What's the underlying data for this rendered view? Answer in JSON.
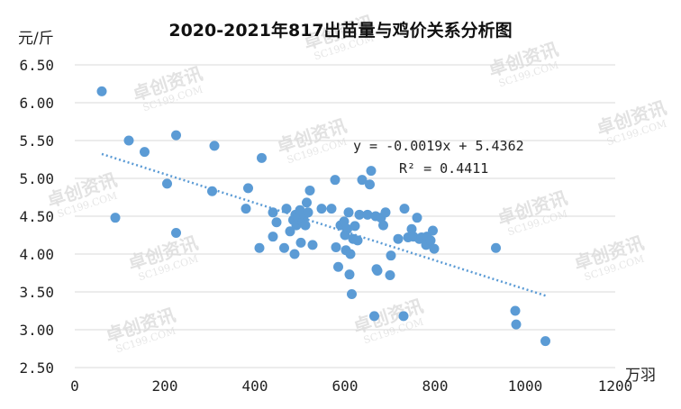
{
  "chart_data": {
    "type": "scatter",
    "title": "2020-2021年817出苗量与鸡价关系分析图",
    "xlabel": "万羽",
    "ylabel": "元/斤",
    "xlim": [
      0,
      1200
    ],
    "ylim": [
      2.5,
      6.5
    ],
    "xticks": [
      "0",
      "200",
      "400",
      "600",
      "800",
      "1000",
      "1200"
    ],
    "yticks": [
      "2.50",
      "3.00",
      "3.50",
      "4.00",
      "4.50",
      "5.00",
      "5.50",
      "6.00",
      "6.50"
    ],
    "grid": "horizontal",
    "legend": "none",
    "watermark": "卓创资讯 SC199.COM",
    "trendline": {
      "equation": "y = -0.0019x + 5.4362",
      "r2": "R² = 0.4411",
      "slope": -0.0019,
      "intercept": 5.4362,
      "x_range": [
        60,
        1045
      ]
    },
    "colors": {
      "points": "#5b9bd5",
      "trend": "#5b9bd5",
      "grid": "#d9d9d9"
    },
    "points": [
      [
        60,
        6.15
      ],
      [
        90,
        4.48
      ],
      [
        120,
        5.5
      ],
      [
        155,
        5.35
      ],
      [
        205,
        4.93
      ],
      [
        225,
        5.57
      ],
      [
        225,
        4.28
      ],
      [
        305,
        4.83
      ],
      [
        310,
        5.43
      ],
      [
        380,
        4.6
      ],
      [
        385,
        4.87
      ],
      [
        410,
        4.08
      ],
      [
        415,
        5.27
      ],
      [
        440,
        4.55
      ],
      [
        440,
        4.23
      ],
      [
        448,
        4.42
      ],
      [
        465,
        4.08
      ],
      [
        470,
        4.6
      ],
      [
        478,
        4.3
      ],
      [
        485,
        4.45
      ],
      [
        488,
        4.0
      ],
      [
        490,
        4.52
      ],
      [
        492,
        4.38
      ],
      [
        496,
        4.48
      ],
      [
        500,
        4.58
      ],
      [
        502,
        4.15
      ],
      [
        505,
        4.43
      ],
      [
        508,
        4.47
      ],
      [
        512,
        4.38
      ],
      [
        515,
        4.68
      ],
      [
        518,
        4.55
      ],
      [
        522,
        4.84
      ],
      [
        528,
        4.12
      ],
      [
        548,
        4.6
      ],
      [
        570,
        4.6
      ],
      [
        578,
        4.98
      ],
      [
        580,
        4.09
      ],
      [
        585,
        3.83
      ],
      [
        590,
        4.38
      ],
      [
        598,
        4.43
      ],
      [
        600,
        4.25
      ],
      [
        602,
        4.05
      ],
      [
        605,
        4.33
      ],
      [
        608,
        4.55
      ],
      [
        610,
        3.73
      ],
      [
        612,
        4.0
      ],
      [
        615,
        3.47
      ],
      [
        618,
        4.2
      ],
      [
        622,
        4.37
      ],
      [
        628,
        4.18
      ],
      [
        632,
        4.52
      ],
      [
        638,
        4.98
      ],
      [
        650,
        4.52
      ],
      [
        655,
        4.92
      ],
      [
        658,
        5.1
      ],
      [
        665,
        3.18
      ],
      [
        668,
        4.5
      ],
      [
        670,
        3.8
      ],
      [
        672,
        3.78
      ],
      [
        680,
        4.48
      ],
      [
        685,
        4.38
      ],
      [
        690,
        4.55
      ],
      [
        700,
        3.72
      ],
      [
        702,
        3.98
      ],
      [
        718,
        4.2
      ],
      [
        730,
        3.18
      ],
      [
        732,
        4.6
      ],
      [
        740,
        4.22
      ],
      [
        748,
        4.33
      ],
      [
        752,
        4.23
      ],
      [
        760,
        4.48
      ],
      [
        765,
        4.2
      ],
      [
        770,
        4.22
      ],
      [
        780,
        4.12
      ],
      [
        782,
        4.23
      ],
      [
        790,
        4.18
      ],
      [
        795,
        4.31
      ],
      [
        798,
        4.07
      ],
      [
        935,
        4.08
      ],
      [
        978,
        3.25
      ],
      [
        980,
        3.07
      ],
      [
        1045,
        2.85
      ]
    ]
  }
}
